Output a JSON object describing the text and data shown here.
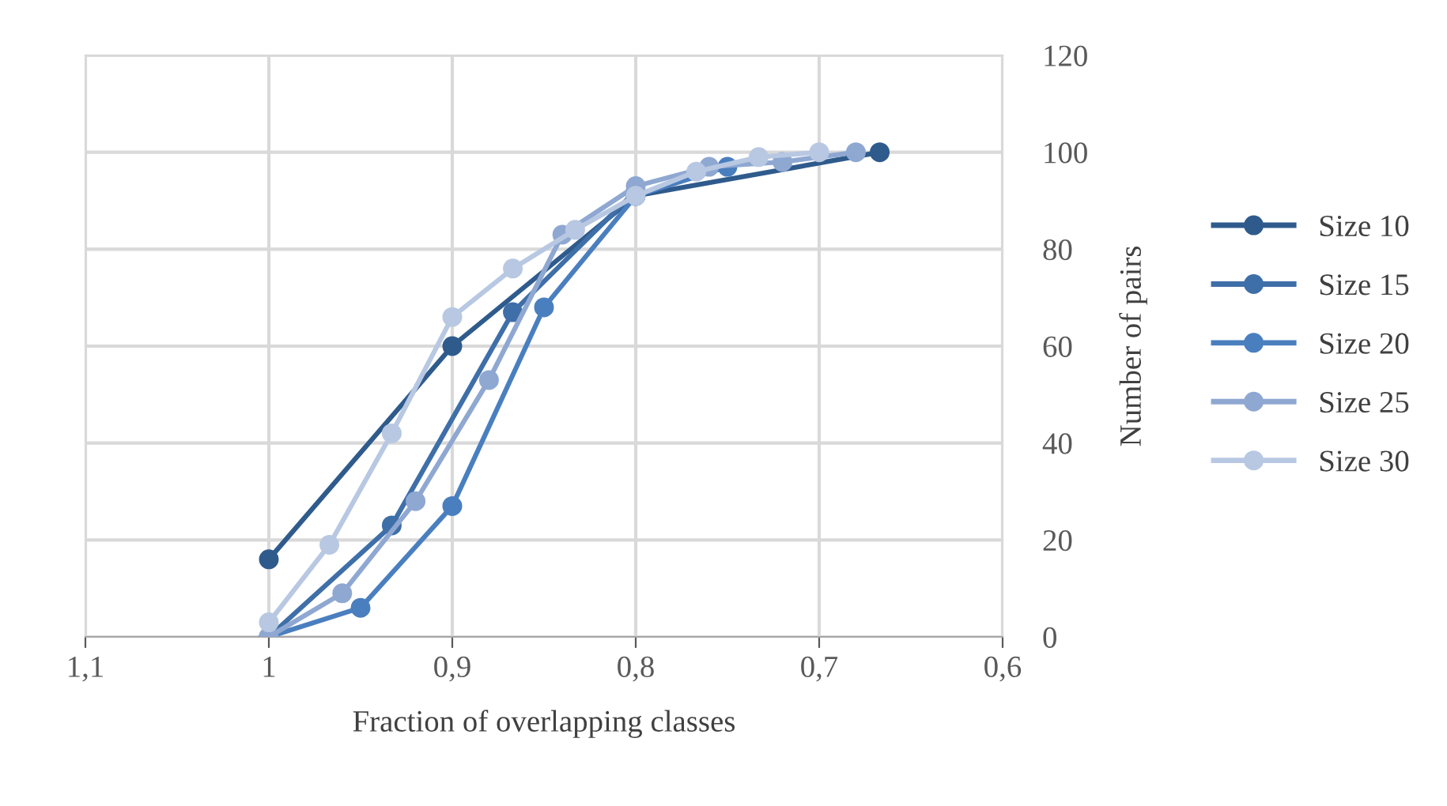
{
  "chart_data": {
    "type": "line",
    "xlabel": "Fraction of overlapping classes",
    "ylabel": "Number of pairs",
    "xlim": [
      1.1,
      0.6
    ],
    "xticks": [
      {
        "value": 1.1,
        "label": "1,1"
      },
      1,
      {
        "value": 0.9,
        "label": "0,9"
      },
      {
        "value": 0.8,
        "label": "0,8"
      },
      {
        "value": 0.7,
        "label": "0,7"
      },
      {
        "value": 0.6,
        "label": "0,6"
      }
    ],
    "ylim": [
      0,
      120
    ],
    "yticks": [
      0,
      20,
      40,
      60,
      80,
      100,
      120
    ],
    "grid": true,
    "legend": "right",
    "marker": "circle",
    "line_style": "solid",
    "series": [
      {
        "name": "Size 10",
        "color": "#2f5b8c",
        "x": [
          1,
          0.9,
          0.8,
          0.667
        ],
        "values": [
          16,
          60,
          91,
          100
        ]
      },
      {
        "name": "Size 15",
        "color": "#3f6fa8",
        "x": [
          1,
          0.933,
          0.867,
          0.8
        ],
        "values": [
          0,
          23,
          67,
          92
        ]
      },
      {
        "name": "Size 20",
        "color": "#4a7fbf",
        "x": [
          1,
          0.95,
          0.9,
          0.85,
          0.8,
          0.75
        ],
        "values": [
          0,
          6,
          27,
          68,
          91,
          97
        ]
      },
      {
        "name": "Size 25",
        "color": "#8fa8d2",
        "x": [
          1,
          0.96,
          0.92,
          0.88,
          0.84,
          0.8,
          0.76,
          0.72,
          0.68
        ],
        "values": [
          0,
          9,
          28,
          53,
          83,
          93,
          97,
          98,
          100
        ]
      },
      {
        "name": "Size 30",
        "color": "#b8c8e2",
        "x": [
          1,
          0.967,
          0.933,
          0.9,
          0.867,
          0.833,
          0.8,
          0.767,
          0.733,
          0.7
        ],
        "values": [
          3,
          19,
          42,
          66,
          76,
          84,
          91,
          96,
          99,
          100
        ]
      }
    ]
  }
}
